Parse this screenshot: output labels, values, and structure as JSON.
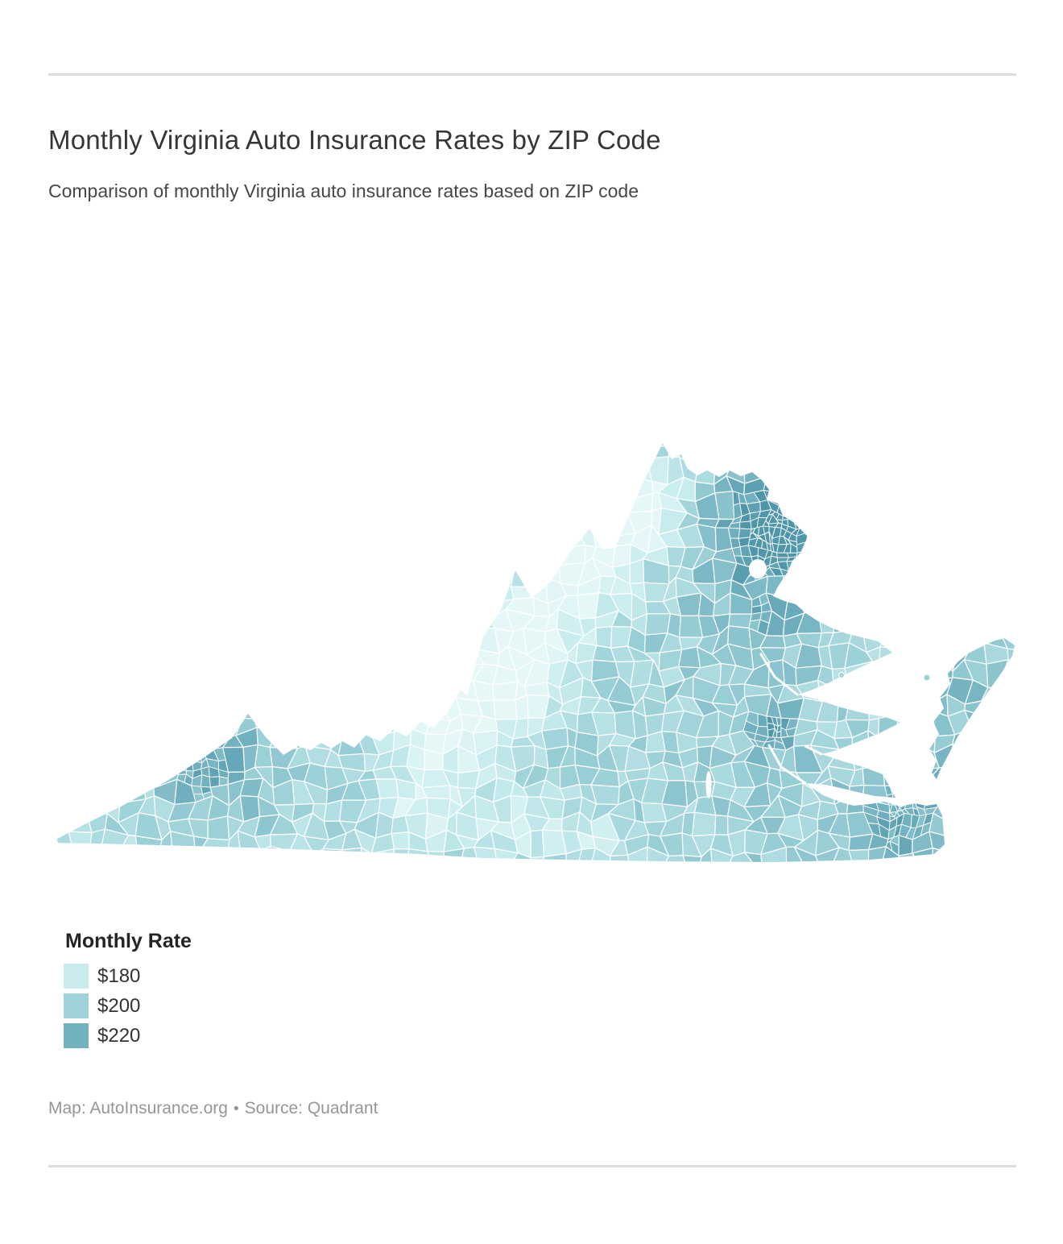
{
  "header": {
    "title": "Monthly Virginia Auto Insurance Rates by ZIP Code",
    "subtitle": "Comparison of monthly Virginia auto insurance rates based on ZIP code"
  },
  "legend": {
    "title": "Monthly Rate",
    "items": [
      {
        "label": "$180",
        "color": "#c8ecee"
      },
      {
        "label": "$200",
        "color": "#9fd3d9"
      },
      {
        "label": "$220",
        "color": "#72b1c0"
      }
    ]
  },
  "footer": {
    "map_credit": "Map: AutoInsurance.org",
    "separator": "•",
    "source": "Source: Quadrant"
  },
  "chart_data": {
    "type": "choropleth_map",
    "title": "Monthly Virginia Auto Insurance Rates by ZIP Code",
    "subtitle": "Comparison of monthly Virginia auto insurance rates based on ZIP code",
    "region": "Virginia, United States",
    "geography_unit": "ZIP code",
    "metric": "Monthly auto insurance rate",
    "currency": "USD",
    "legend_title": "Monthly Rate",
    "color_scale": {
      "type": "continuous-sequential",
      "stops": [
        {
          "value": 180,
          "color": "#c8ecee"
        },
        {
          "value": 200,
          "color": "#9fd3d9"
        },
        {
          "value": 220,
          "color": "#72b1c0"
        }
      ]
    },
    "visual_pattern": {
      "highest_rate_areas": [
        "Northern Virginia (Washington DC suburbs)",
        "Richmond metro area",
        "Hampton Roads / Norfolk / Virginia Beach",
        "Far southwest tip of Virginia"
      ],
      "lowest_rate_areas": [
        "Shenandoah Valley and west-central Virginia",
        "South-central Virginia near the North Carolina border"
      ]
    },
    "credits": "Map: AutoInsurance.org • Source: Quadrant"
  }
}
